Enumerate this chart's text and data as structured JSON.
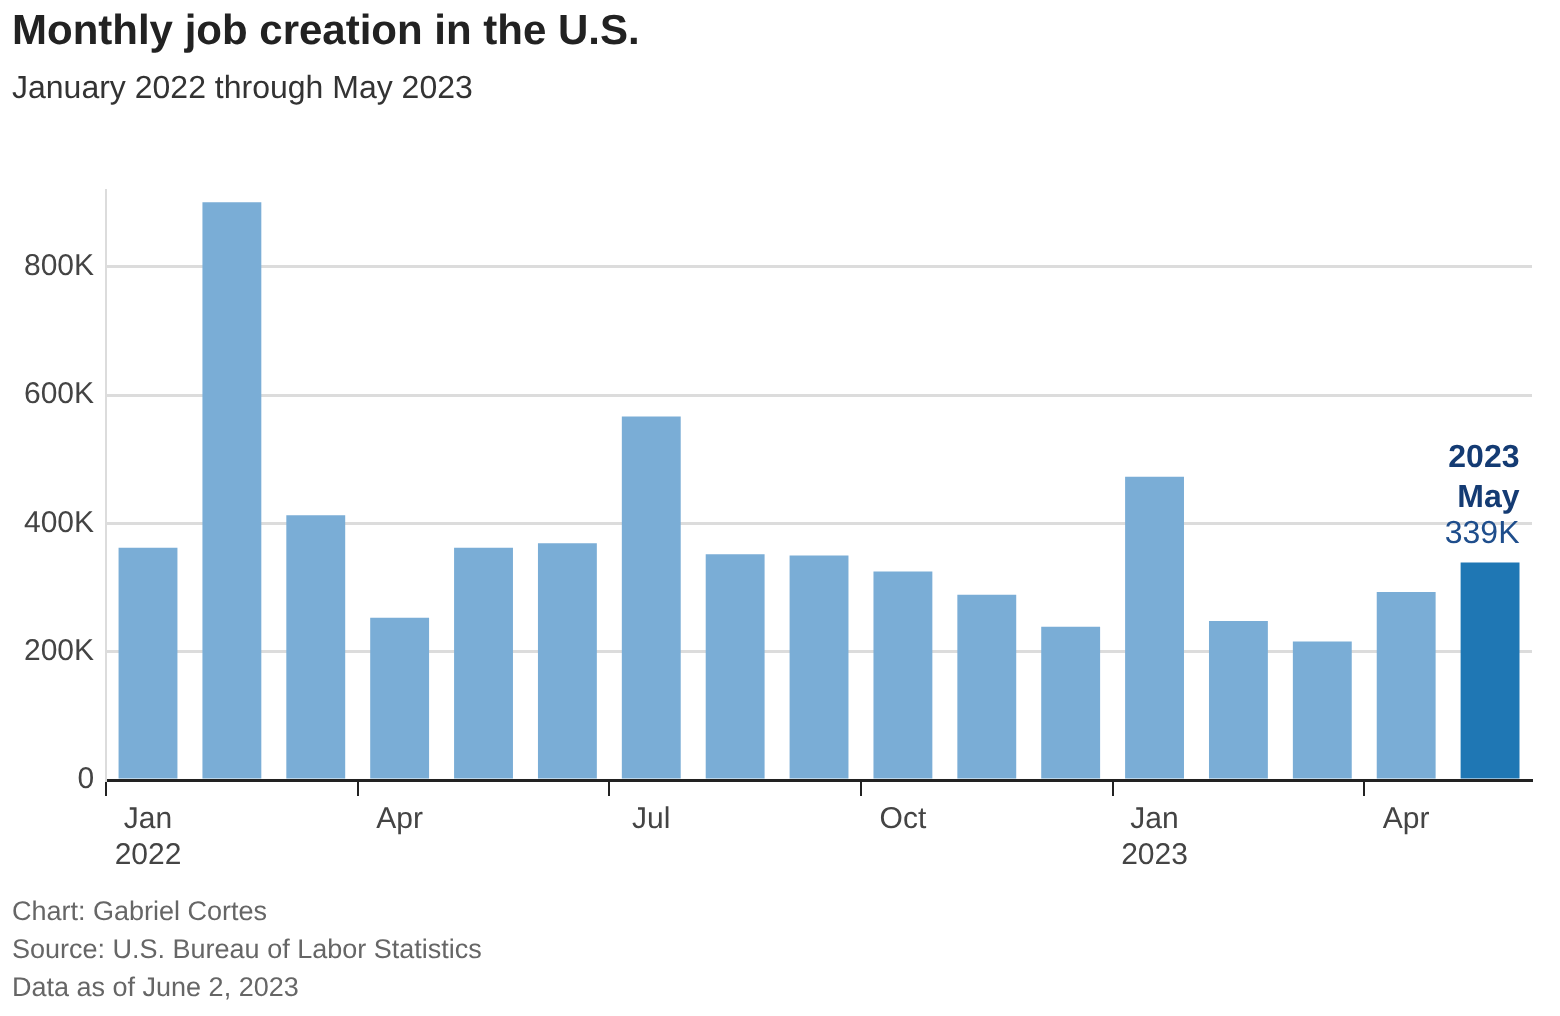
{
  "chart_data": {
    "type": "bar",
    "title": "Monthly job creation in the U.S.",
    "subtitle": "January 2022 through May 2023",
    "categories": [
      "Jan 2022",
      null,
      null,
      "Apr",
      null,
      null,
      "Jul",
      null,
      null,
      "Oct",
      null,
      null,
      "Jan 2023",
      null,
      null,
      "Apr",
      null
    ],
    "values": [
      362,
      901,
      413,
      253,
      362,
      369,
      567,
      352,
      350,
      325,
      289,
      239,
      473,
      248,
      216,
      293,
      339
    ],
    "colors": [
      "#7aadd6",
      "#7aadd6",
      "#7aadd6",
      "#7aadd6",
      "#7aadd6",
      "#7aadd6",
      "#7aadd6",
      "#7aadd6",
      "#7aadd6",
      "#7aadd6",
      "#7aadd6",
      "#7aadd6",
      "#7aadd6",
      "#7aadd6",
      "#7aadd6",
      "#7aadd6",
      "#1f77b4"
    ],
    "value_labels": [
      null,
      null,
      null,
      null,
      null,
      null,
      null,
      null,
      null,
      null,
      null,
      null,
      null,
      null,
      null,
      null,
      "339K"
    ],
    "ylim": [
      0,
      920
    ],
    "yticks": [
      0,
      {
        "value": 200,
        "label": "200K"
      },
      {
        "value": 400,
        "label": "400K"
      },
      {
        "value": 600,
        "label": "600K"
      },
      {
        "value": 800,
        "label": "800K"
      }
    ],
    "grid": "y",
    "legend": false,
    "annotations": [
      {
        "text": "2023 May",
        "y": 339
      },
      "Chart: Gabriel Cortes",
      "Source: U.S. Bureau of Labor Statistics",
      "Data as of June 2, 2023"
    ]
  }
}
